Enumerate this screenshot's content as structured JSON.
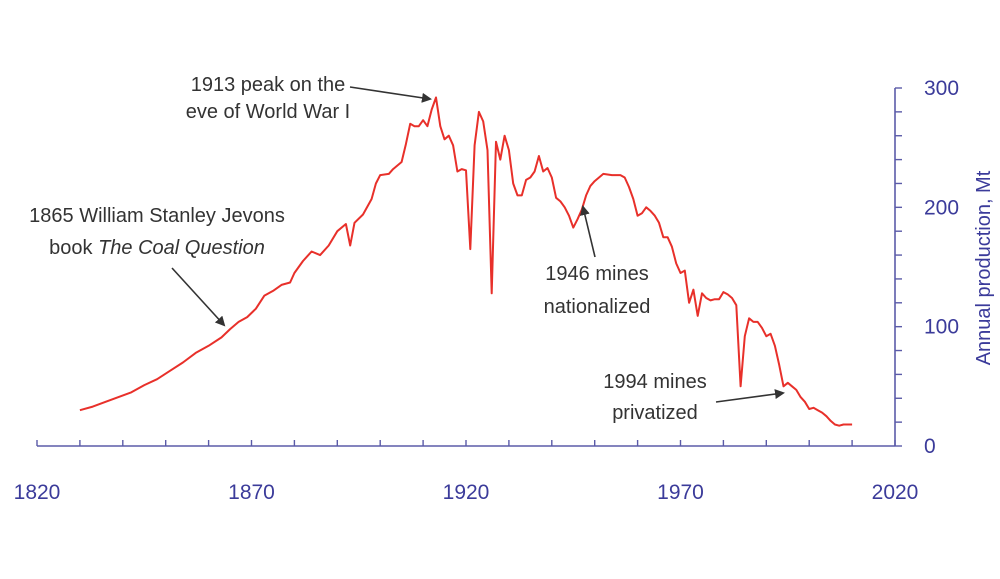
{
  "chart_data": {
    "type": "line",
    "ylabel": "Annual production, Mt",
    "xlim": [
      1820,
      2020
    ],
    "ylim": [
      0,
      300
    ],
    "x_ticks": [
      "1820",
      "1870",
      "1920",
      "1970",
      "2020"
    ],
    "y_ticks": [
      "0",
      "100",
      "200",
      "300"
    ],
    "colors": {
      "line": "#e8302a",
      "axis": "#5b5ba8",
      "annotation": "#333333"
    },
    "series": [
      {
        "name": "",
        "points": [
          [
            1830,
            30
          ],
          [
            1833,
            33
          ],
          [
            1836,
            37
          ],
          [
            1839,
            41
          ],
          [
            1842,
            45
          ],
          [
            1845,
            51
          ],
          [
            1848,
            56
          ],
          [
            1851,
            63
          ],
          [
            1854,
            70
          ],
          [
            1857,
            78
          ],
          [
            1860,
            84
          ],
          [
            1863,
            91
          ],
          [
            1865,
            98
          ],
          [
            1867,
            104
          ],
          [
            1869,
            108
          ],
          [
            1871,
            115
          ],
          [
            1873,
            126
          ],
          [
            1875,
            130
          ],
          [
            1877,
            135
          ],
          [
            1879,
            137
          ],
          [
            1880,
            145
          ],
          [
            1882,
            155
          ],
          [
            1884,
            163
          ],
          [
            1886,
            160
          ],
          [
            1888,
            168
          ],
          [
            1890,
            180
          ],
          [
            1892,
            186
          ],
          [
            1893,
            168
          ],
          [
            1894,
            187
          ],
          [
            1896,
            194
          ],
          [
            1898,
            207
          ],
          [
            1899,
            220
          ],
          [
            1900,
            227
          ],
          [
            1902,
            228
          ],
          [
            1903,
            232
          ],
          [
            1905,
            238
          ],
          [
            1906,
            253
          ],
          [
            1907,
            270
          ],
          [
            1908,
            268
          ],
          [
            1909,
            268
          ],
          [
            1910,
            273
          ],
          [
            1911,
            268
          ],
          [
            1912,
            282
          ],
          [
            1913,
            292
          ],
          [
            1914,
            268
          ],
          [
            1915,
            257
          ],
          [
            1916,
            260
          ],
          [
            1917,
            252
          ],
          [
            1918,
            230
          ],
          [
            1919,
            232
          ],
          [
            1920,
            231
          ],
          [
            1921,
            165
          ],
          [
            1922,
            252
          ],
          [
            1923,
            280
          ],
          [
            1924,
            272
          ],
          [
            1925,
            248
          ],
          [
            1926,
            128
          ],
          [
            1927,
            255
          ],
          [
            1928,
            240
          ],
          [
            1929,
            260
          ],
          [
            1930,
            248
          ],
          [
            1931,
            220
          ],
          [
            1932,
            210
          ],
          [
            1933,
            210
          ],
          [
            1934,
            223
          ],
          [
            1935,
            225
          ],
          [
            1936,
            230
          ],
          [
            1937,
            243
          ],
          [
            1938,
            230
          ],
          [
            1939,
            233
          ],
          [
            1940,
            225
          ],
          [
            1941,
            208
          ],
          [
            1942,
            205
          ],
          [
            1943,
            200
          ],
          [
            1944,
            193
          ],
          [
            1945,
            183
          ],
          [
            1946,
            190
          ],
          [
            1947,
            198
          ],
          [
            1948,
            210
          ],
          [
            1949,
            218
          ],
          [
            1950,
            222
          ],
          [
            1952,
            228
          ],
          [
            1954,
            227
          ],
          [
            1956,
            227
          ],
          [
            1957,
            225
          ],
          [
            1958,
            217
          ],
          [
            1959,
            207
          ],
          [
            1960,
            193
          ],
          [
            1961,
            195
          ],
          [
            1962,
            200
          ],
          [
            1963,
            197
          ],
          [
            1964,
            193
          ],
          [
            1965,
            187
          ],
          [
            1966,
            175
          ],
          [
            1967,
            175
          ],
          [
            1968,
            167
          ],
          [
            1969,
            153
          ],
          [
            1970,
            145
          ],
          [
            1971,
            147
          ],
          [
            1972,
            120
          ],
          [
            1973,
            131
          ],
          [
            1974,
            109
          ],
          [
            1975,
            128
          ],
          [
            1976,
            124
          ],
          [
            1977,
            122
          ],
          [
            1978,
            123
          ],
          [
            1979,
            123
          ],
          [
            1980,
            129
          ],
          [
            1981,
            127
          ],
          [
            1982,
            124
          ],
          [
            1983,
            118
          ],
          [
            1984,
            50
          ],
          [
            1985,
            92
          ],
          [
            1986,
            107
          ],
          [
            1987,
            104
          ],
          [
            1988,
            104
          ],
          [
            1989,
            99
          ],
          [
            1990,
            92
          ],
          [
            1991,
            94
          ],
          [
            1992,
            84
          ],
          [
            1993,
            68
          ],
          [
            1994,
            50
          ],
          [
            1995,
            53
          ],
          [
            1996,
            50
          ],
          [
            1997,
            47
          ],
          [
            1998,
            41
          ],
          [
            1999,
            37
          ],
          [
            2000,
            31
          ],
          [
            2001,
            32
          ],
          [
            2002,
            30
          ],
          [
            2003,
            28
          ],
          [
            2004,
            25
          ],
          [
            2005,
            21
          ],
          [
            2006,
            18
          ],
          [
            2007,
            17
          ],
          [
            2008,
            18
          ],
          [
            2009,
            18
          ],
          [
            2010,
            18
          ]
        ]
      }
    ],
    "annotations": [
      {
        "key": "peak",
        "lines": [
          "1913 peak on the",
          "eve of World War I"
        ],
        "point": [
          1913,
          292
        ]
      },
      {
        "key": "jevons",
        "lines": [
          "1865 William Stanley Jevons",
          "book The Coal Question"
        ],
        "point": [
          1865,
          98
        ]
      },
      {
        "key": "nationalized",
        "lines": [
          "1946 mines",
          "nationalized"
        ],
        "point": [
          1946,
          190
        ]
      },
      {
        "key": "privatized",
        "lines": [
          "1994 mines",
          "privatized"
        ],
        "point": [
          1994,
          50
        ]
      }
    ],
    "grid": false,
    "legend": "none"
  }
}
